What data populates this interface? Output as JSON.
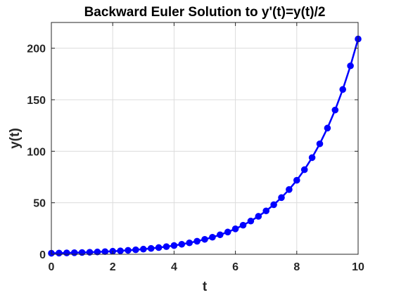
{
  "chart_data": {
    "type": "line",
    "title": "Backward Euler Solution to y'(t)=y(t)/2",
    "xlabel": "t",
    "ylabel": "y(t)",
    "xlim": [
      0,
      10
    ],
    "ylim": [
      0,
      225
    ],
    "x_ticks": [
      0,
      2,
      4,
      6,
      8,
      10
    ],
    "x_tick_labels": [
      "0",
      "2",
      "4",
      "6",
      "8",
      "10"
    ],
    "y_ticks": [
      0,
      50,
      100,
      150,
      200
    ],
    "y_tick_labels": [
      "0",
      "50",
      "100",
      "150",
      "200"
    ],
    "grid": true,
    "box": true,
    "legend": "none",
    "colors": {
      "line": "#0000ff",
      "marker": "#0000ff",
      "grid": "#dcdcdc",
      "axes": "#262626"
    },
    "series": [
      {
        "marker": "filled-circle",
        "x": [
          0,
          0.25,
          0.5,
          0.75,
          1,
          1.25,
          1.5,
          1.75,
          2,
          2.25,
          2.5,
          2.75,
          3,
          3.25,
          3.5,
          3.75,
          4,
          4.25,
          4.5,
          4.75,
          5,
          5.25,
          5.5,
          5.75,
          6,
          6.25,
          6.5,
          6.75,
          7,
          7.25,
          7.5,
          7.75,
          8,
          8.25,
          8.5,
          8.75,
          9,
          9.25,
          9.5,
          9.75,
          10
        ],
        "y": [
          1,
          1.14,
          1.31,
          1.49,
          1.71,
          1.95,
          2.23,
          2.55,
          2.91,
          3.33,
          3.81,
          4.35,
          4.97,
          5.68,
          6.49,
          7.42,
          8.48,
          9.69,
          11.08,
          12.66,
          14.47,
          16.53,
          18.9,
          21.59,
          24.68,
          28.21,
          32.24,
          36.84,
          42.1,
          48.12,
          54.99,
          62.85,
          71.82,
          82.09,
          93.81,
          107.2,
          122.5,
          140.0,
          160.0,
          182.9,
          209.0
        ]
      }
    ]
  }
}
